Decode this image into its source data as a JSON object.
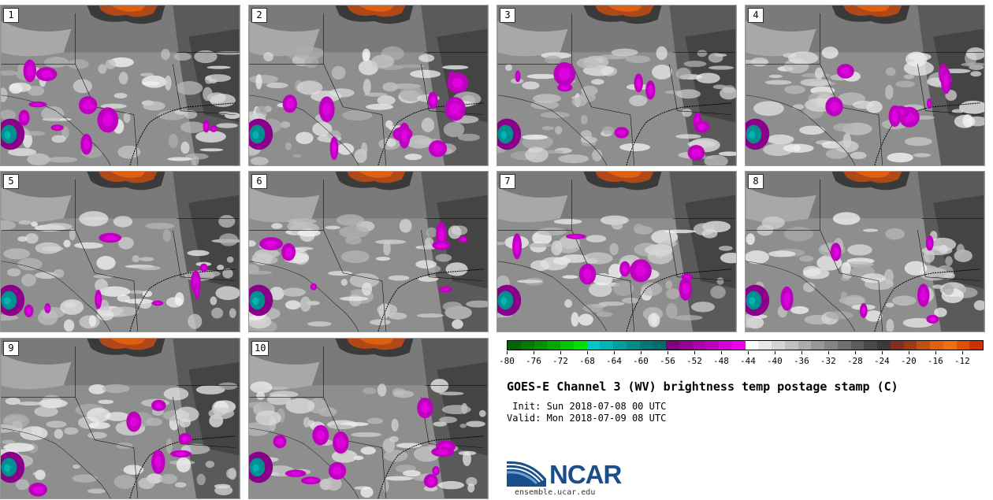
{
  "panels": [
    {
      "label": "1"
    },
    {
      "label": "2"
    },
    {
      "label": "3"
    },
    {
      "label": "4"
    },
    {
      "label": "5"
    },
    {
      "label": "6"
    },
    {
      "label": "7"
    },
    {
      "label": "8"
    },
    {
      "label": "9"
    },
    {
      "label": "10"
    }
  ],
  "colorbar": {
    "tick_labels": [
      "-80",
      "-76",
      "-72",
      "-68",
      "-64",
      "-60",
      "-56",
      "-52",
      "-48",
      "-44",
      "-40",
      "-36",
      "-32",
      "-28",
      "-24",
      "-20",
      "-16",
      "-12"
    ],
    "colors": [
      "#006400",
      "#007a00",
      "#009000",
      "#00a800",
      "#00c800",
      "#00e000",
      "#00c8c8",
      "#00b4b4",
      "#00a0a0",
      "#008c8c",
      "#007878",
      "#006e6e",
      "#800080",
      "#960096",
      "#ac00ac",
      "#c000c0",
      "#d800d8",
      "#ee00ee",
      "#ffffff",
      "#e8e8e8",
      "#d4d4d4",
      "#c0c0c0",
      "#acacac",
      "#989898",
      "#848484",
      "#707070",
      "#5c5c5c",
      "#484848",
      "#3a3a3a",
      "#803020",
      "#a03a10",
      "#c05010",
      "#e06010",
      "#f07010",
      "#e05000",
      "#d03000"
    ]
  },
  "title": "GOES-E Channel 3 (WV) brightness temp postage stamp (C)",
  "init": " Init: Sun 2018-07-08 00 UTC",
  "valid": "Valid: Mon 2018-07-09 08 UTC",
  "logo": {
    "text": "NCAR",
    "url": "ensemble.ucar.edu"
  }
}
